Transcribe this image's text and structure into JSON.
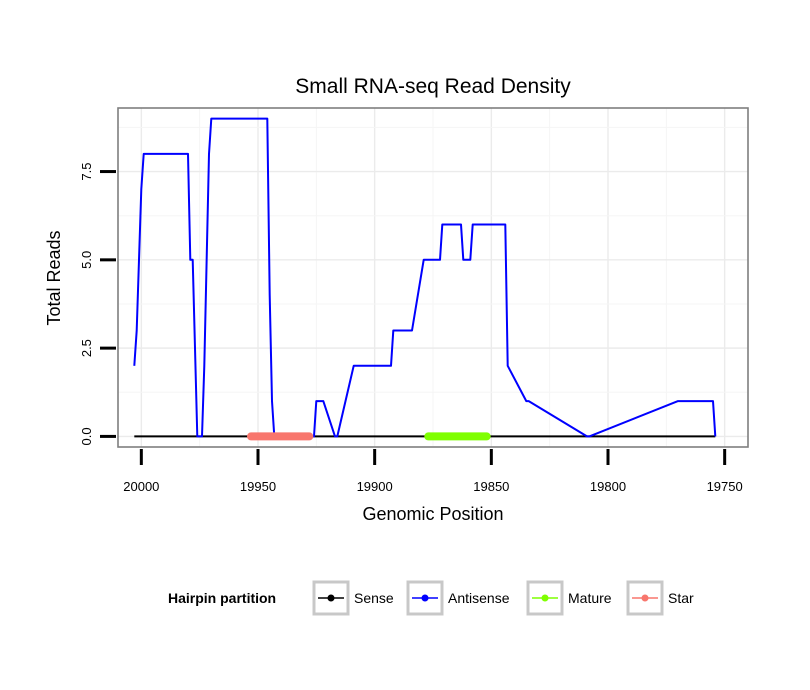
{
  "chart_data": {
    "type": "line",
    "title": "Small RNA-seq Read Density",
    "xlabel": "Genomic Position",
    "ylabel": "Total Reads",
    "xlim": [
      20010,
      19740
    ],
    "x_reversed": true,
    "ylim": [
      -0.3,
      9.3
    ],
    "x_ticks": [
      20000,
      19950,
      19900,
      19850,
      19800,
      19750
    ],
    "x_tick_labels": [
      "20000",
      "19950",
      "19900",
      "19850",
      "19800",
      "19750"
    ],
    "y_ticks": [
      0,
      2.5,
      5,
      7.5
    ],
    "y_tick_labels": [
      "0.0",
      "2.5",
      "5.0",
      "7.5"
    ],
    "grid": true,
    "legend": {
      "title": "Hairpin partition",
      "position": "bottom",
      "entries": [
        {
          "name": "Sense",
          "color": "#000000"
        },
        {
          "name": "Antisense",
          "color": "#0000ff"
        },
        {
          "name": "Mature",
          "color": "#7fff00"
        },
        {
          "name": "Star",
          "color": "#f8766d"
        }
      ]
    },
    "series": [
      {
        "name": "Sense",
        "color": "#000000",
        "x": [
          20003,
          19754
        ],
        "y": [
          0,
          0
        ]
      },
      {
        "name": "Antisense",
        "color": "#0000ff",
        "x": [
          20003,
          20002,
          20001,
          20000,
          19999,
          19980,
          19979,
          19978,
          19976,
          19975,
          19974,
          19973,
          19971,
          19970,
          19946,
          19945,
          19944,
          19943,
          19926,
          19925,
          19923,
          19922,
          19917,
          19916,
          19909,
          19908,
          19893,
          19892,
          19892,
          19891,
          19890,
          19889,
          19885,
          19884,
          19879,
          19878,
          19872,
          19871,
          19863,
          19862,
          19859,
          19858,
          19858,
          19857,
          19844,
          19843,
          19835,
          19834,
          19809,
          19808,
          19770,
          19769,
          19755,
          19754
        ],
        "y": [
          2,
          3,
          5,
          7,
          8,
          8,
          5,
          5,
          0,
          0,
          0,
          2,
          8,
          9,
          9,
          4,
          1,
          0,
          0,
          1,
          1,
          1,
          0,
          0,
          2,
          2,
          2,
          3,
          3,
          3,
          3,
          3,
          3,
          3,
          5,
          5,
          5,
          6,
          6,
          5,
          5,
          6,
          6,
          6,
          6,
          2,
          1,
          1,
          0,
          0,
          1,
          1,
          1,
          0
        ]
      },
      {
        "name": "Mature",
        "color": "#7fff00",
        "x": [
          19877,
          19852
        ],
        "y": [
          0,
          0
        ]
      },
      {
        "name": "Star",
        "color": "#f8766d",
        "x": [
          19953,
          19928
        ],
        "y": [
          0,
          0
        ]
      }
    ]
  }
}
